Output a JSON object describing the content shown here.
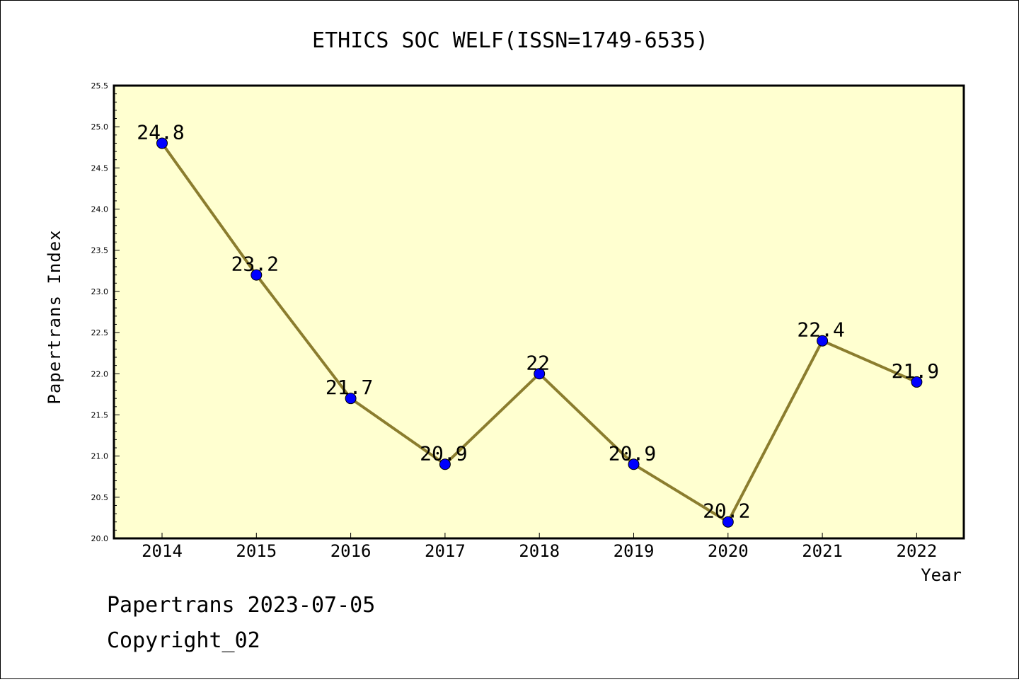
{
  "chart_data": {
    "type": "line",
    "title": "ETHICS SOC WELF(ISSN=1749-6535)",
    "xlabel": "Year",
    "ylabel": "Papertrans Index",
    "categories": [
      "2014",
      "2015",
      "2016",
      "2017",
      "2018",
      "2019",
      "2020",
      "2021",
      "2022"
    ],
    "values": [
      24.8,
      23.2,
      21.7,
      20.9,
      22,
      20.9,
      20.2,
      22.4,
      21.9
    ],
    "data_labels": [
      "24.8",
      "23.2",
      "21.7",
      "20.9",
      "22",
      "20.9",
      "20.2",
      "22.4",
      "21.9"
    ],
    "ylim": [
      20.0,
      25.5
    ],
    "yticks": [
      "20.0",
      "20.5",
      "21.0",
      "21.5",
      "22.0",
      "22.5",
      "23.0",
      "23.5",
      "24.0",
      "24.5",
      "25.0",
      "25.5"
    ],
    "grid": false,
    "legend": "none",
    "colors": {
      "plot_background": "#ffffd0",
      "line": "#8b7d2e",
      "marker": "#0000ff"
    }
  },
  "footer": {
    "line1": "Papertrans 2023-07-05",
    "line2": "Copyright_02"
  }
}
